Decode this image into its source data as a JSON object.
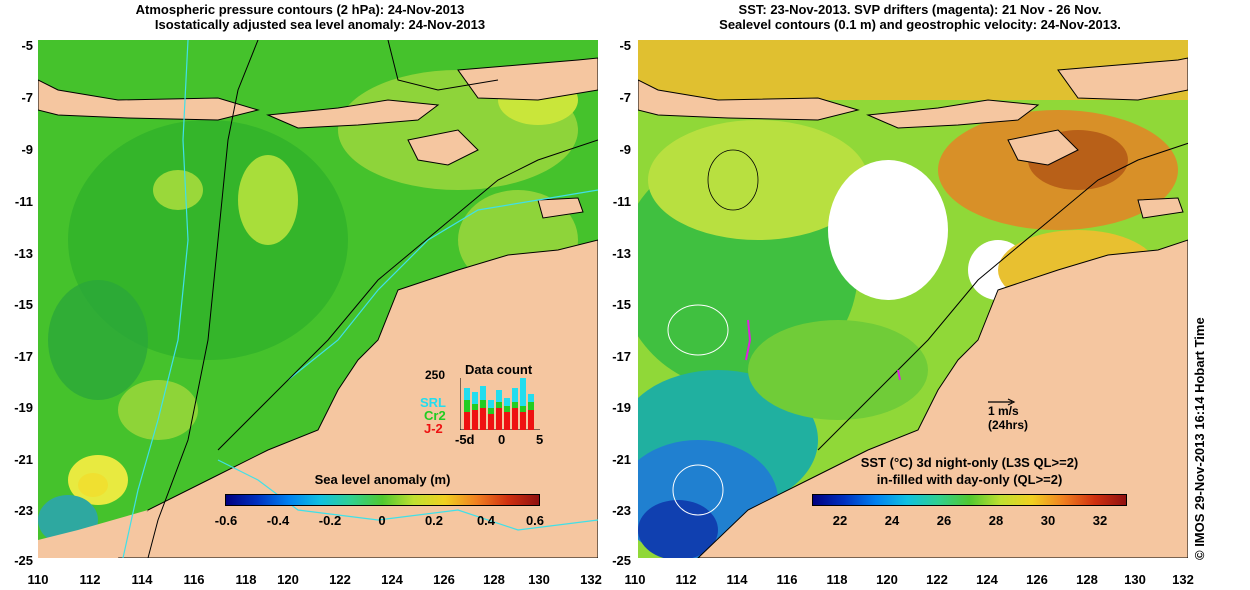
{
  "left_panel": {
    "title_line1": "Atmospheric pressure contours (2 hPa): 24-Nov-2013",
    "title_line2": "Isostatically adjusted sea level anomaly: 24-Nov-2013",
    "colorbar_title": "Sea level anomaly (m)",
    "colorbar_ticks": [
      "-0.6",
      "-0.4",
      "-0.2",
      "0",
      "0.2",
      "0.4",
      "0.6"
    ],
    "inset": {
      "title": "Data count",
      "ytick": "250",
      "xticks": [
        "-5d",
        "0",
        "5"
      ],
      "legend": [
        {
          "label": "SRL",
          "color": "#22ddee"
        },
        {
          "label": "Cr2",
          "color": "#22cc22"
        },
        {
          "label": "J-2",
          "color": "#ee1111"
        }
      ]
    }
  },
  "right_panel": {
    "title_line1": "SST: 23-Nov-2013. SVP drifters (magenta): 21 Nov - 26 Nov.",
    "title_line2": "Sealevel contours (0.1 m) and geostrophic velocity: 24-Nov-2013.",
    "colorbar_title_line1": "SST (°C)  3d night-only (L3S QL>=2)",
    "colorbar_title_line2": "in-filled with day-only (QL>=2)",
    "colorbar_ticks": [
      "22",
      "24",
      "26",
      "28",
      "30",
      "32"
    ],
    "vector_scale_label": "1 m/s",
    "vector_scale_sub": "(24hrs)"
  },
  "axes": {
    "y_ticks": [
      "-5",
      "-7",
      "-9",
      "-11",
      "-13",
      "-15",
      "-17",
      "-19",
      "-21",
      "-23",
      "-25"
    ],
    "x_ticks": [
      "110",
      "112",
      "114",
      "116",
      "118",
      "120",
      "122",
      "124",
      "126",
      "128",
      "130",
      "132"
    ]
  },
  "credit": "© IMOS 29-Nov-2013 16:14 Hobart Time",
  "colors": {
    "land": "#f5c6a0",
    "ocean_green": "#4fc930",
    "cyan_contour": "#40e0e8"
  }
}
